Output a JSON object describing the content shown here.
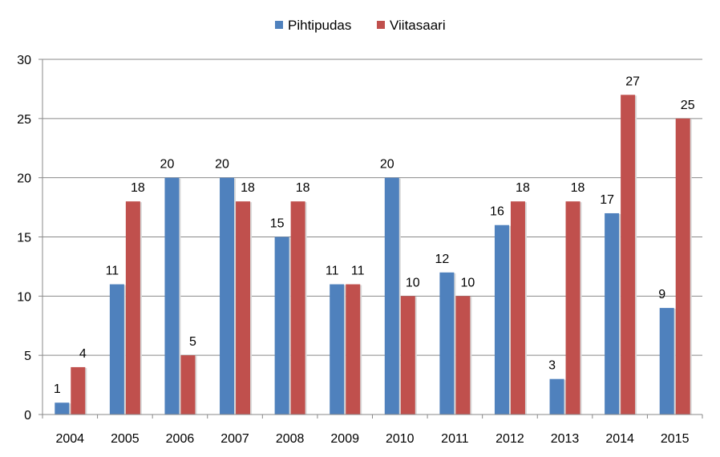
{
  "chart_data": {
    "type": "bar",
    "categories": [
      "2004",
      "2005",
      "2006",
      "2007",
      "2008",
      "2009",
      "2010",
      "2011",
      "2012",
      "2013",
      "2014",
      "2015"
    ],
    "series": [
      {
        "name": "Pihtipudas",
        "color": "#4F81BD",
        "values": [
          1,
          11,
          20,
          20,
          15,
          11,
          20,
          12,
          16,
          3,
          17,
          9
        ]
      },
      {
        "name": "Viitasaari",
        "color": "#C0504D",
        "values": [
          4,
          18,
          5,
          18,
          18,
          11,
          10,
          10,
          18,
          18,
          27,
          25
        ]
      }
    ],
    "title": "",
    "xlabel": "",
    "ylabel": "",
    "ylim": [
      0,
      30
    ],
    "yticks": [
      0,
      5,
      10,
      15,
      20,
      25,
      30
    ],
    "grid": true,
    "legend_position": "top",
    "data_labels": true
  }
}
